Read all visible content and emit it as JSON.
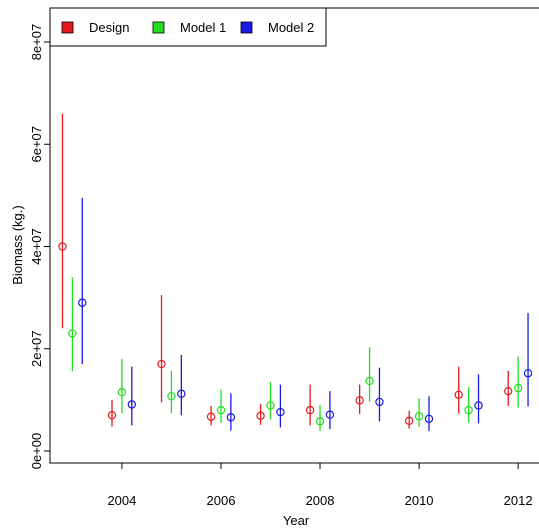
{
  "chart_data": {
    "type": "scatter",
    "title": "",
    "xlabel": "Year",
    "ylabel": "Biomass (kg.)",
    "xlim": [
      2002.75,
      2012.3
    ],
    "ylim": [
      0,
      80000000
    ],
    "x_ticks": [
      2004,
      2006,
      2008,
      2010,
      2012
    ],
    "x_tick_labels": [
      "2004",
      "2006",
      "2008",
      "2010",
      "2012"
    ],
    "y_ticks": [
      0,
      20000000,
      40000000,
      60000000,
      80000000
    ],
    "y_tick_labels": [
      "0e+00",
      "2e+07",
      "4e+07",
      "6e+07",
      "8e+07"
    ],
    "grid": false,
    "legend_position": "top-left",
    "legend": [
      "Design",
      "Model 1",
      "Model 2"
    ],
    "series": [
      {
        "name": "Design",
        "color": "#e31a1c",
        "x": [
          2002.8,
          2003.8,
          2004.8,
          2005.8,
          2006.8,
          2007.8,
          2008.8,
          2009.8,
          2010.8,
          2011.8
        ],
        "y": [
          40000000,
          7000000,
          17000000,
          6700000,
          6900000,
          8000000,
          9900000,
          5900000,
          11000000,
          11700000
        ],
        "lower": [
          24000000,
          4800000,
          9500000,
          5000000,
          5100000,
          5000000,
          7200000,
          4400000,
          7300000,
          8800000
        ],
        "upper": [
          66000000,
          10000000,
          30500000,
          8800000,
          9200000,
          13000000,
          13000000,
          7900000,
          16500000,
          15700000
        ]
      },
      {
        "name": "Model 1",
        "color": "#22dd22",
        "x": [
          2003.0,
          2004.0,
          2005.0,
          2006.0,
          2007.0,
          2008.0,
          2009.0,
          2010.0,
          2011.0,
          2012.0
        ],
        "y": [
          23000000,
          11500000,
          10700000,
          8000000,
          8900000,
          5800000,
          13700000,
          6800000,
          8000000,
          12300000
        ],
        "lower": [
          15600000,
          7400000,
          7400000,
          5500000,
          6200000,
          3900000,
          9600000,
          4700000,
          5500000,
          8500000
        ],
        "upper": [
          34000000,
          18000000,
          15700000,
          12000000,
          13500000,
          9000000,
          20300000,
          10300000,
          12500000,
          18500000
        ]
      },
      {
        "name": "Model 2",
        "color": "#1a1ae6",
        "x": [
          2003.2,
          2004.2,
          2005.2,
          2006.2,
          2007.2,
          2008.2,
          2009.2,
          2010.2,
          2011.2,
          2012.2
        ],
        "y": [
          29000000,
          9100000,
          11200000,
          6600000,
          7600000,
          7100000,
          9600000,
          6300000,
          8900000,
          15200000
        ],
        "lower": [
          17000000,
          5000000,
          7000000,
          4000000,
          4600000,
          4300000,
          5800000,
          3900000,
          5400000,
          8700000
        ],
        "upper": [
          49500000,
          16500000,
          18800000,
          11300000,
          13000000,
          11700000,
          16300000,
          10700000,
          15000000,
          27000000
        ]
      }
    ]
  }
}
